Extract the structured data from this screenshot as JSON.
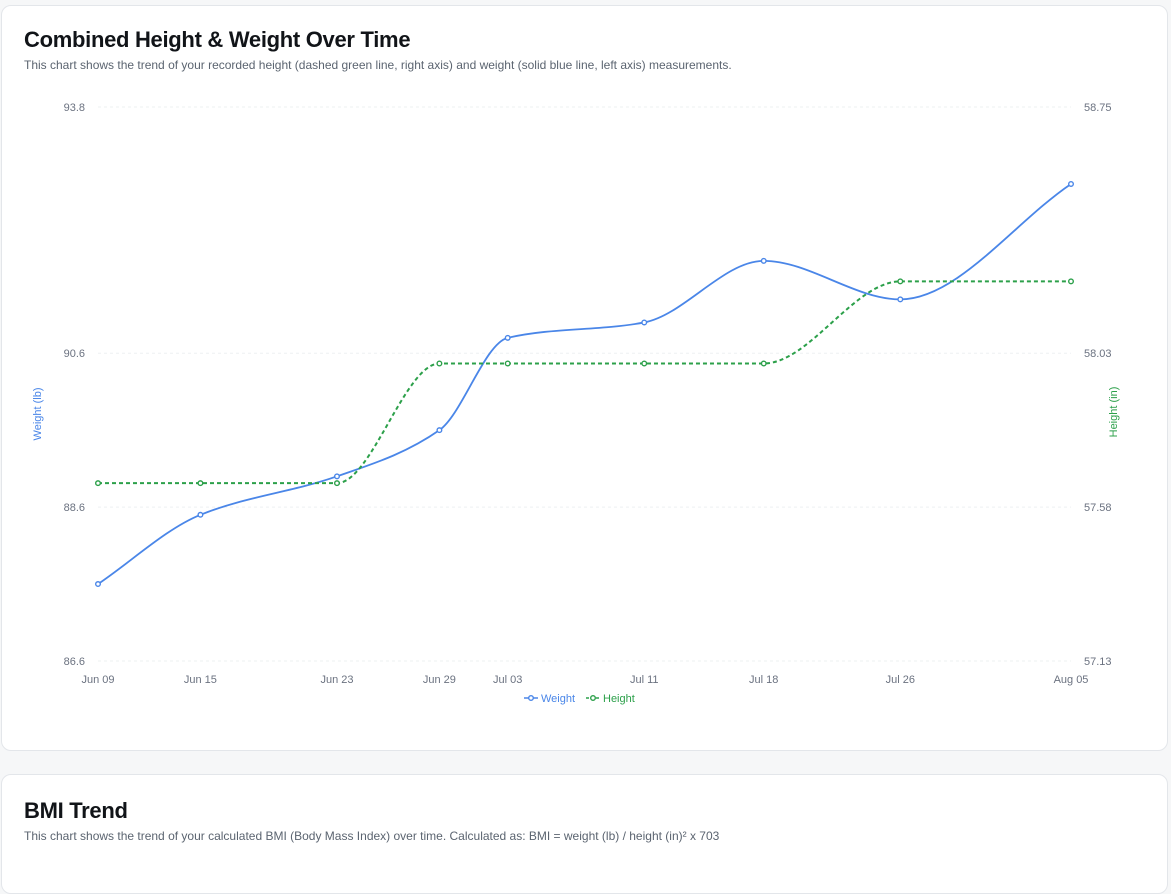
{
  "card1": {
    "title": "Combined Height & Weight Over Time",
    "description": "This chart shows the trend of your recorded height (dashed green line, right axis) and weight (solid blue line, left axis) measurements."
  },
  "card2": {
    "title": "BMI Trend",
    "description": "This chart shows the trend of your calculated BMI (Body Mass Index) over time. Calculated as: BMI = weight (lb) / height (in)² x 703"
  },
  "chart_data": {
    "type": "line",
    "title": "Combined Height & Weight Over Time",
    "x": [
      "2024-06-09",
      "2024-06-15",
      "2024-06-23",
      "2024-06-29",
      "2024-07-03",
      "2024-07-11",
      "2024-07-18",
      "2024-07-26",
      "2024-08-05"
    ],
    "x_tick_labels": [
      "Jun 09",
      "Jun 15",
      "Jun 23",
      "Jun 29",
      "Jul 03",
      "Jul 11",
      "Jul 18",
      "Jul 26",
      "Aug 05"
    ],
    "xlim": [
      "2024-06-09",
      "2024-08-05"
    ],
    "series": [
      {
        "name": "Weight",
        "axis": "left",
        "color": "#4a86e8",
        "style": "solid",
        "values": [
          87.6,
          88.5,
          89.0,
          89.6,
          90.8,
          91.0,
          91.8,
          91.3,
          92.8
        ]
      },
      {
        "name": "Height",
        "axis": "right",
        "color": "#2ca04a",
        "style": "dashed",
        "values": [
          57.65,
          57.65,
          57.65,
          58.0,
          58.0,
          58.0,
          58.0,
          58.24,
          58.24
        ]
      }
    ],
    "y_left": {
      "label": "Weight (lb)",
      "ticks": [
        "86.6",
        "88.6",
        "90.6",
        "93.8"
      ],
      "range": [
        86.6,
        93.8
      ],
      "color": "#4a86e8"
    },
    "y_right": {
      "label": "Height (in)",
      "ticks": [
        "57.13",
        "57.58",
        "58.03",
        "58.75"
      ],
      "range": [
        57.13,
        58.75
      ],
      "color": "#2ca04a"
    },
    "grid": true,
    "legend": "bottom-center"
  }
}
